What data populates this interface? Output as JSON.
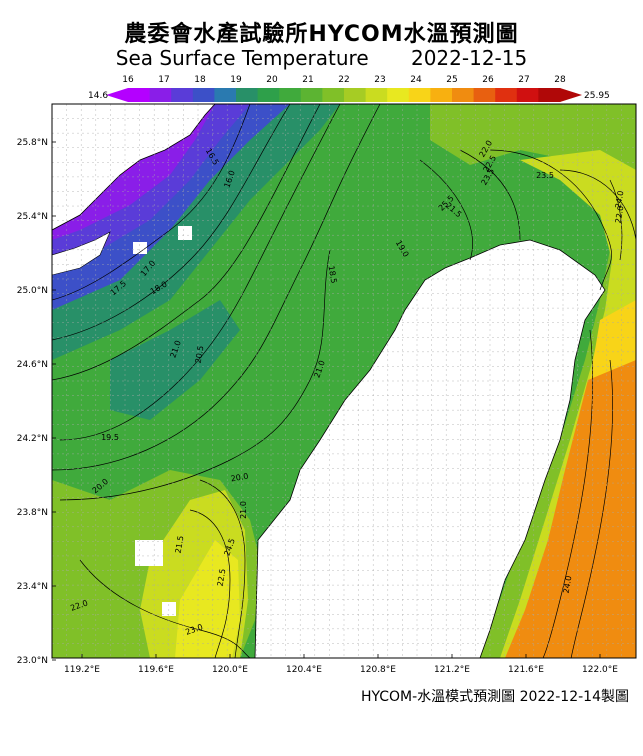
{
  "title": {
    "cn": "農委會水產試驗所HYCOM水溫預測圖",
    "en": "Sea Surface Temperature",
    "date": "2022-12-15"
  },
  "colorbar": {
    "min_label": "14.6",
    "max_label": "25.95",
    "ticks": [
      "16",
      "17",
      "18",
      "19",
      "20",
      "21",
      "22",
      "23",
      "24",
      "25",
      "26",
      "27",
      "28"
    ],
    "colors": [
      "#b400ff",
      "#8a1ee8",
      "#5a3cd8",
      "#3c50c8",
      "#2a7ab0",
      "#289068",
      "#2ea04a",
      "#40aa3c",
      "#5cb432",
      "#80c028",
      "#a6cc24",
      "#cadc20",
      "#e8e820",
      "#f8d418",
      "#f8b010",
      "#f08c10",
      "#e86010",
      "#e03010",
      "#d01010",
      "#b00808"
    ]
  },
  "map": {
    "lat_labels": [
      "25.8°N",
      "25.4°N",
      "25.0°N",
      "24.6°N",
      "24.2°N",
      "23.8°N",
      "23.4°N",
      "23.0°N"
    ],
    "lon_labels": [
      "119.2°E",
      "119.6°E",
      "120.0°E",
      "120.4°E",
      "120.8°E",
      "121.2°E",
      "121.6°E",
      "122.0°E"
    ],
    "contour_labels": [
      "22.0",
      "22.5",
      "23.5",
      "21.5",
      "24.0",
      "16.5",
      "16.0",
      "17.0",
      "17.5",
      "18.0",
      "18.5",
      "19.0",
      "21.0",
      "21.0",
      "20.5",
      "19.5",
      "20.0",
      "20.0",
      "21.0",
      "21.5",
      "22.0",
      "22.5",
      "23.0",
      "23.5",
      "22.0",
      "24.0",
      "24.5",
      "25.5"
    ],
    "land_color": "#ffffff",
    "grid_color": "#aaaaaa"
  },
  "footer": "HYCOM-水溫模式預測圖 2022-12-14製圖"
}
